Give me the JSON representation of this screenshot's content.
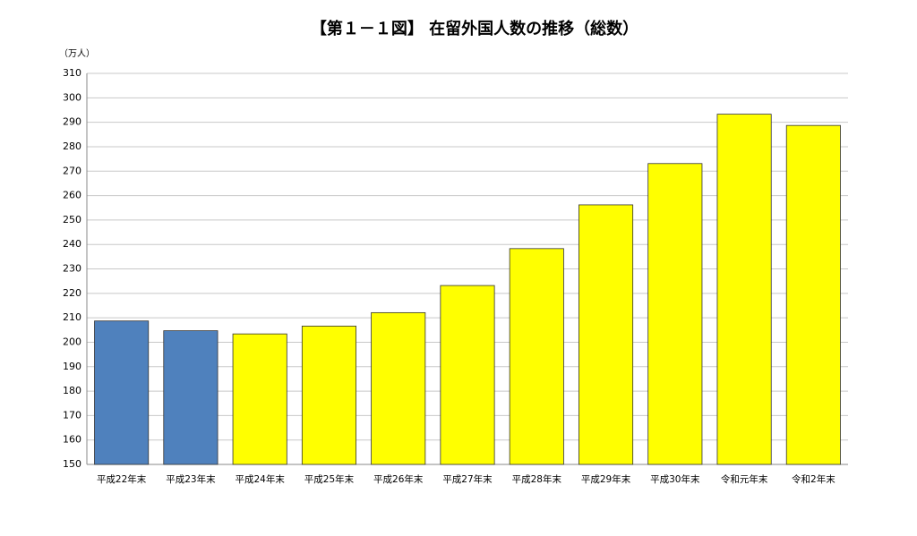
{
  "chart_data": {
    "type": "bar",
    "title": "【第１－１図】 在留外国人数の推移（総数）",
    "y_label": "（万人）",
    "categories": [
      "平成22年末",
      "平成23年末",
      "平成24年末",
      "平成25年末",
      "平成26年末",
      "平成27年末",
      "平成28年末",
      "平成29年末",
      "平成30年末",
      "令和元年末",
      "令和2年末"
    ],
    "values": [
      208.7,
      204.7,
      203.4,
      206.6,
      212.1,
      223.2,
      238.3,
      256.2,
      273.1,
      293.3,
      288.7
    ],
    "colors": [
      "#4f81bd",
      "#4f81bd",
      "#ffff00",
      "#ffff00",
      "#ffff00",
      "#ffff00",
      "#ffff00",
      "#ffff00",
      "#ffff00",
      "#ffff00",
      "#ffff00"
    ],
    "ylim": [
      150,
      310
    ],
    "yticks": [
      150,
      160,
      170,
      180,
      190,
      200,
      210,
      220,
      230,
      240,
      250,
      260,
      270,
      280,
      290,
      300,
      310
    ],
    "grid": true
  }
}
